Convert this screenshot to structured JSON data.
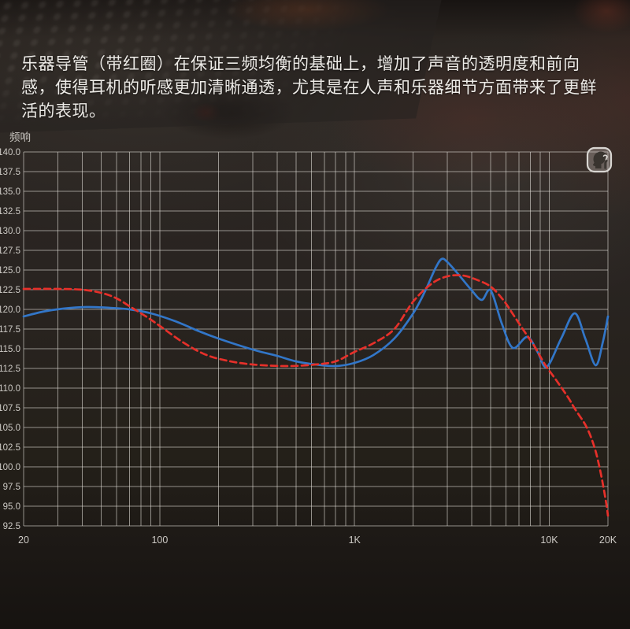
{
  "description": {
    "text": "乐器导管（带红圈）在保证三频均衡的基础上，增加了声音的透明度和前向感，使得耳机的听感更加清晰通透，尤其是在人声和乐器细节方面带来了更鲜活的表现。"
  },
  "chart_data": {
    "type": "line",
    "title": "频响",
    "grid": true,
    "legend_position": "none",
    "x_axis": {
      "scale": "log",
      "min": 20,
      "max": 20000,
      "ticks": [
        {
          "value": 20,
          "label": "20"
        },
        {
          "value": 100,
          "label": "100"
        },
        {
          "value": 1000,
          "label": "1K"
        },
        {
          "value": 10000,
          "label": "10K"
        },
        {
          "value": 20000,
          "label": "20K"
        }
      ]
    },
    "y_axis": {
      "min": 92.5,
      "max": 140.0,
      "step": 2.5,
      "label_decimals": 1
    },
    "series": [
      {
        "name": "curve-blue-solid",
        "color": "#3276c8",
        "style": "solid",
        "points": [
          [
            20,
            119.1
          ],
          [
            25,
            119.7
          ],
          [
            32,
            120.1
          ],
          [
            42,
            120.3
          ],
          [
            55,
            120.2
          ],
          [
            70,
            120.0
          ],
          [
            90,
            119.5
          ],
          [
            120,
            118.5
          ],
          [
            160,
            117.2
          ],
          [
            200,
            116.3
          ],
          [
            250,
            115.5
          ],
          [
            320,
            114.7
          ],
          [
            400,
            114.1
          ],
          [
            500,
            113.4
          ],
          [
            630,
            113.0
          ],
          [
            800,
            112.8
          ],
          [
            1000,
            113.2
          ],
          [
            1250,
            114.2
          ],
          [
            1600,
            116.3
          ],
          [
            2000,
            119.5
          ],
          [
            2300,
            122.3
          ],
          [
            2600,
            125.2
          ],
          [
            2800,
            126.4
          ],
          [
            3000,
            126.0
          ],
          [
            3400,
            124.5
          ],
          [
            4000,
            122.4
          ],
          [
            4500,
            121.2
          ],
          [
            5000,
            122.4
          ],
          [
            5700,
            118.2
          ],
          [
            6500,
            115.1
          ],
          [
            7700,
            116.5
          ],
          [
            8700,
            114.6
          ],
          [
            9700,
            112.7
          ],
          [
            11500,
            116.3
          ],
          [
            13500,
            119.5
          ],
          [
            15300,
            116.3
          ],
          [
            17300,
            112.9
          ],
          [
            18800,
            115.8
          ],
          [
            20000,
            119.1
          ]
        ]
      },
      {
        "name": "curve-red-dashed",
        "color": "#e6302a",
        "style": "dashed",
        "points": [
          [
            20,
            122.6
          ],
          [
            30,
            122.6
          ],
          [
            40,
            122.5
          ],
          [
            50,
            122.1
          ],
          [
            60,
            121.4
          ],
          [
            72,
            120.2
          ],
          [
            85,
            119.1
          ],
          [
            100,
            117.9
          ],
          [
            130,
            115.9
          ],
          [
            170,
            114.3
          ],
          [
            220,
            113.5
          ],
          [
            300,
            113.0
          ],
          [
            450,
            112.8
          ],
          [
            630,
            113.0
          ],
          [
            800,
            113.4
          ],
          [
            1000,
            114.6
          ],
          [
            1250,
            115.7
          ],
          [
            1600,
            117.5
          ],
          [
            2000,
            121.0
          ],
          [
            2500,
            123.3
          ],
          [
            3000,
            124.2
          ],
          [
            3600,
            124.3
          ],
          [
            4200,
            123.8
          ],
          [
            5000,
            122.9
          ],
          [
            5800,
            121.2
          ],
          [
            6500,
            119.4
          ],
          [
            7400,
            117.3
          ],
          [
            8400,
            115.3
          ],
          [
            9500,
            113.0
          ],
          [
            11000,
            110.8
          ],
          [
            12500,
            108.8
          ],
          [
            13500,
            107.4
          ],
          [
            15500,
            105.1
          ],
          [
            17000,
            102.6
          ],
          [
            18000,
            100.2
          ],
          [
            19000,
            97.3
          ],
          [
            19700,
            95.0
          ],
          [
            20000,
            93.8
          ]
        ]
      }
    ],
    "corner_icon": "measurement-head-icon"
  },
  "colors": {
    "blue_curve": "#3276c8",
    "red_curve": "#e6302a",
    "grid_line": "#dcd8d2",
    "axis_text": "#ccc9c4",
    "chart_title_text": "#c9c6c1",
    "description_text": "#edebe7"
  }
}
